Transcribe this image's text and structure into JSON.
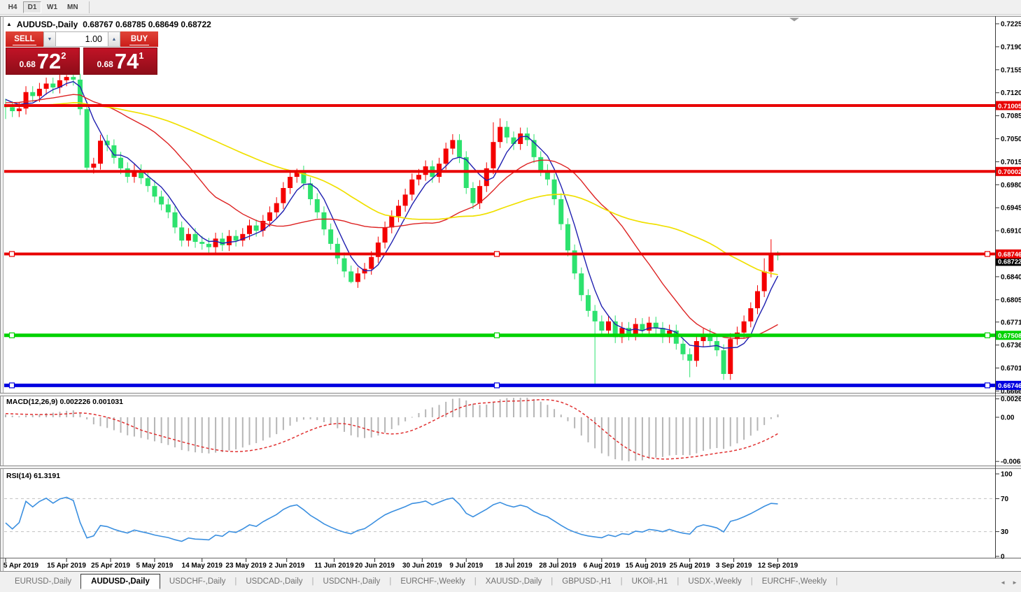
{
  "toolbar": {
    "timeframes": [
      {
        "label": "H4",
        "active": false
      },
      {
        "label": "D1",
        "active": true
      },
      {
        "label": "W1",
        "active": false
      },
      {
        "label": "MN",
        "active": false
      }
    ]
  },
  "window": {
    "title_arrow": "▲",
    "symbol_period": "AUDUSD-,Daily",
    "title_ohlc": "0.68767 0.68785 0.68649 0.68722",
    "collapse_arrow": "▼"
  },
  "trade_panel": {
    "sell_label": "SELL",
    "buy_label": "BUY",
    "volume": "1.00",
    "down_arrow": "▼",
    "up_arrow": "▲",
    "sell_small": "0.68",
    "sell_big": "72",
    "sell_sup": "2",
    "buy_small": "0.68",
    "buy_big": "74",
    "buy_sup": "1"
  },
  "price_axis": {
    "ticks": [
      "0.72250",
      "0.71900",
      "0.71550",
      "0.71200",
      "0.70850",
      "0.70500",
      "0.70150",
      "0.69800",
      "0.69450",
      "0.69100",
      "0.68400",
      "0.68050",
      "0.67710",
      "0.67360",
      "0.67010",
      "0.66660"
    ],
    "bid_label": "0.68722"
  },
  "hlines": [
    {
      "price": 0.71005,
      "label": "0.71005",
      "color": "#e80000",
      "width": 4,
      "selected": false
    },
    {
      "price": 0.70002,
      "label": "0.70002",
      "color": "#e80000",
      "width": 4,
      "selected": false
    },
    {
      "price": 0.68746,
      "label": "0.68746",
      "color": "#e80000",
      "width": 4,
      "selected": true
    },
    {
      "price": 0.67508,
      "label": "0.67508",
      "color": "#00d200",
      "width": 5,
      "selected": true
    },
    {
      "price": 0.66746,
      "label": "0.66746",
      "color": "#0000e0",
      "width": 5,
      "selected": true
    }
  ],
  "macd_panel": {
    "label": "MACD(12,26,9)",
    "values": "0.002226 0.001031",
    "axis_ticks": [
      {
        "text": "0.002633",
        "v": 0.002633
      },
      {
        "text": "0.00",
        "v": 0
      },
      {
        "text": "-0.00632",
        "v": -0.00632
      }
    ]
  },
  "rsi_panel": {
    "label": "RSI(14)",
    "value": "61.3191",
    "axis_ticks": [
      {
        "text": "100",
        "v": 100
      },
      {
        "text": "70",
        "v": 70
      },
      {
        "text": "30",
        "v": 30
      },
      {
        "text": "0",
        "v": 0
      }
    ],
    "levels": [
      70,
      30
    ]
  },
  "date_axis": [
    {
      "text": "5 Apr 2019",
      "i": 0
    },
    {
      "text": "15 Apr 2019",
      "i": 9
    },
    {
      "text": "25 Apr 2019",
      "i": 15.5
    },
    {
      "text": "5 May 2019",
      "i": 22
    },
    {
      "text": "14 May 2019",
      "i": 29
    },
    {
      "text": "23 May 2019",
      "i": 35.5
    },
    {
      "text": "2 Jun 2019",
      "i": 41.5
    },
    {
      "text": "11 Jun 2019",
      "i": 48.5
    },
    {
      "text": "20 Jun 2019",
      "i": 54.5
    },
    {
      "text": "30 Jun 2019",
      "i": 61.5
    },
    {
      "text": "9 Jul 2019",
      "i": 68
    },
    {
      "text": "18 Jul 2019",
      "i": 75
    },
    {
      "text": "28 Jul 2019",
      "i": 81.5
    },
    {
      "text": "6 Aug 2019",
      "i": 88
    },
    {
      "text": "15 Aug 2019",
      "i": 94.5
    },
    {
      "text": "25 Aug 2019",
      "i": 101
    },
    {
      "text": "3 Sep 2019",
      "i": 107.5
    },
    {
      "text": "12 Sep 2019",
      "i": 114
    }
  ],
  "tabs": {
    "items": [
      {
        "label": "EURUSD-,Daily",
        "active": false
      },
      {
        "label": "AUDUSD-,Daily",
        "active": true
      },
      {
        "label": "USDCHF-,Daily",
        "active": false
      },
      {
        "label": "USDCAD-,Daily",
        "active": false
      },
      {
        "label": "USDCNH-,Daily",
        "active": false
      },
      {
        "label": "EURCHF-,Weekly",
        "active": false
      },
      {
        "label": "XAUUSD-,Daily",
        "active": false
      },
      {
        "label": "GBPUSD-,H1",
        "active": false
      },
      {
        "label": "UKOil-,H1",
        "active": false
      },
      {
        "label": "USDX-,Weekly",
        "active": false
      },
      {
        "label": "EURCHF-,Weekly",
        "active": false
      }
    ],
    "scroll_left": "◄",
    "scroll_right": "►"
  },
  "chart_data": {
    "type": "candlestick",
    "symbol": "AUDUSD-",
    "period": "Daily",
    "price_range": {
      "axis_top": 0.7225,
      "axis_bottom": 0.6666
    },
    "up_color": "#f40000",
    "down_color": "#2de26e",
    "open_first": 0.7102,
    "default_wick": 0.0009,
    "closes": [
      0.7098,
      0.7092,
      0.7096,
      0.7121,
      0.7115,
      0.7126,
      0.7134,
      0.7128,
      0.7139,
      0.7144,
      0.714,
      0.7095,
      0.7006,
      0.7012,
      0.7047,
      0.704,
      0.7021,
      0.7005,
      0.6992,
      0.7002,
      0.699,
      0.6978,
      0.6962,
      0.695,
      0.6938,
      0.6915,
      0.6895,
      0.6905,
      0.6893,
      0.689,
      0.6885,
      0.6898,
      0.6888,
      0.6902,
      0.6895,
      0.6905,
      0.6918,
      0.691,
      0.6925,
      0.6938,
      0.6952,
      0.6975,
      0.6992,
      0.7,
      0.6982,
      0.6958,
      0.6938,
      0.6912,
      0.689,
      0.6868,
      0.6848,
      0.6832,
      0.6845,
      0.6852,
      0.687,
      0.6892,
      0.6915,
      0.6932,
      0.6948,
      0.6965,
      0.6988,
      0.6995,
      0.7008,
      0.6992,
      0.7012,
      0.7035,
      0.7048,
      0.7022,
      0.6975,
      0.6952,
      0.6978,
      0.7005,
      0.7045,
      0.7068,
      0.7052,
      0.7042,
      0.7058,
      0.7048,
      0.7022,
      0.7002,
      0.6988,
      0.6958,
      0.692,
      0.688,
      0.6845,
      0.6812,
      0.6788,
      0.6772,
      0.6758,
      0.6772,
      0.6748,
      0.6762,
      0.6752,
      0.6768,
      0.6758,
      0.677,
      0.6762,
      0.6748,
      0.6758,
      0.6738,
      0.6722,
      0.6712,
      0.6742,
      0.6752,
      0.6742,
      0.6728,
      0.6692,
      0.6745,
      0.6755,
      0.6772,
      0.6792,
      0.6818,
      0.6848,
      0.6875,
      0.68722
    ],
    "overrides": {
      "0": {
        "l": 0.708
      },
      "8": {
        "h": 0.715
      },
      "9": {
        "h": 0.7147
      },
      "12": {
        "l": 0.7
      },
      "43": {
        "h": 0.70045
      },
      "51": {
        "l": 0.683
      },
      "72": {
        "h": 0.7075
      },
      "73": {
        "h": 0.7081
      },
      "87": {
        "l": 0.6676
      },
      "101": {
        "l": 0.6687
      },
      "106": {
        "l": 0.6683
      },
      "112": {
        "h": 0.6868
      },
      "113": {
        "h": 0.6897
      },
      "114": {
        "o": 0.68767,
        "h": 0.68785,
        "l": 0.68649,
        "c": 0.68722
      }
    },
    "moving_averages": [
      {
        "period": 5,
        "color": "#2020b0"
      },
      {
        "period": 20,
        "color": "#dd2222"
      },
      {
        "period": 45,
        "color": "#f0e000"
      }
    ],
    "macd": {
      "fast": 12,
      "slow": 26,
      "signal": 9,
      "hist_color": "#b6b6b6",
      "signal_color": "#e03030"
    },
    "rsi": {
      "period": 14,
      "color": "#3a8fe0"
    }
  }
}
